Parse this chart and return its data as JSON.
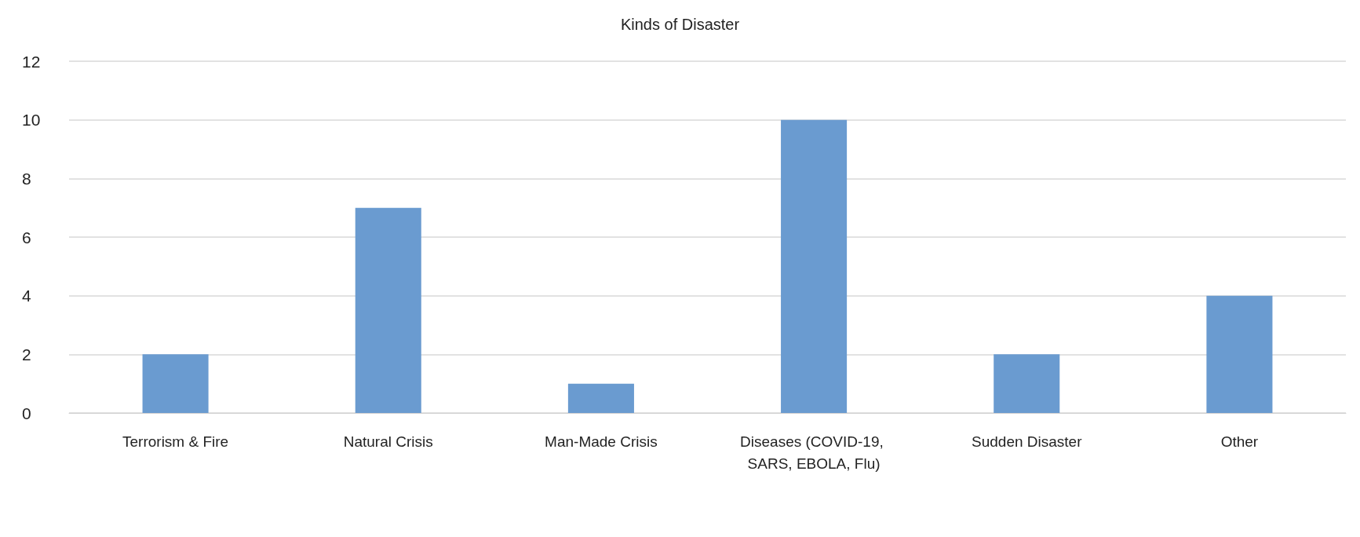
{
  "chart_data": {
    "type": "bar",
    "title": "Kinds of Disaster",
    "categories": [
      "Terrorism & Fire",
      "Natural Crisis",
      "Man-Made Crisis",
      "Diseases (COVID-19, SARS, EBOLA, Flu)",
      "Sudden Disaster",
      "Other"
    ],
    "values": [
      2,
      7,
      1,
      10,
      2,
      4
    ],
    "color": "#6a9bd0",
    "ylim": [
      0,
      12
    ],
    "yticks": [
      0,
      2,
      4,
      6,
      8,
      10,
      12
    ],
    "grid": "y"
  }
}
